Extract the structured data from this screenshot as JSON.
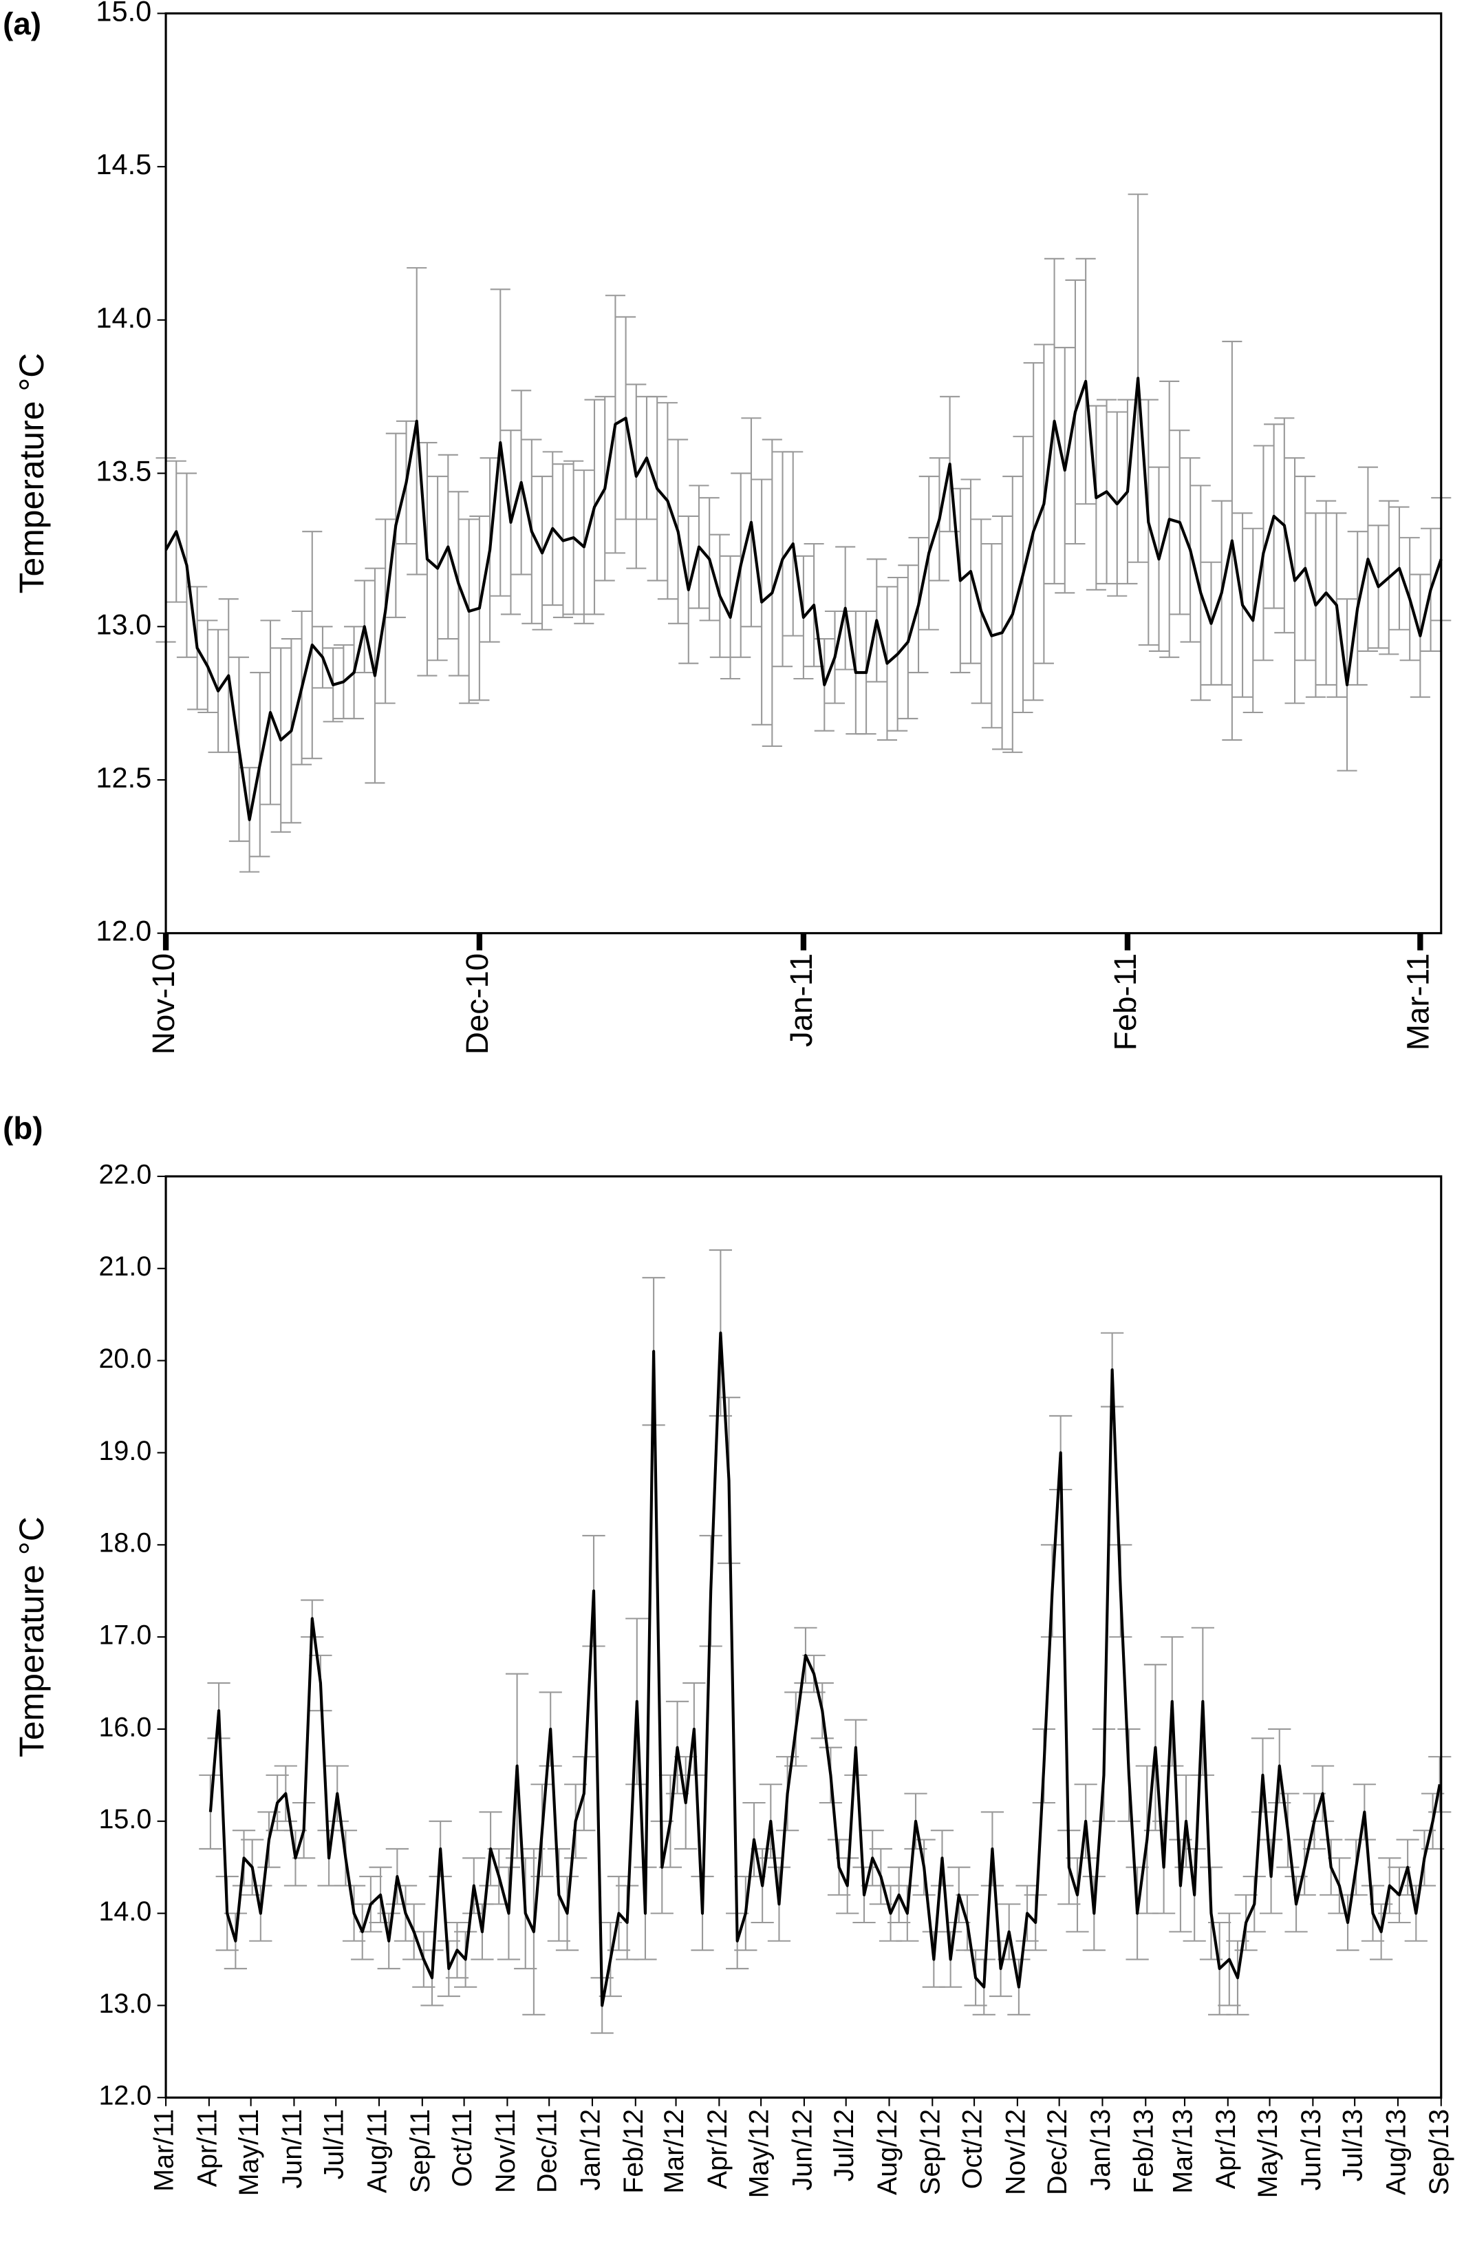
{
  "chart_data": [
    {
      "type": "line",
      "panel": "(a)",
      "y_label": "Temperature °C",
      "line_color": "#000000",
      "error_color": "#999999",
      "xlim": [
        0,
        122
      ],
      "xticks": [
        {
          "value": 0,
          "label": "Nov-10"
        },
        {
          "value": 30,
          "label": "Dec-10"
        },
        {
          "value": 61,
          "label": "Jan-11"
        },
        {
          "value": 92,
          "label": "Feb-11"
        },
        {
          "value": 120,
          "label": "Mar-11"
        }
      ],
      "ylim": [
        12,
        15
      ],
      "yticks": [
        {
          "value": 12,
          "label": "12.0"
        },
        12.5,
        {
          "value": 13,
          "label": "13.0"
        },
        13.5,
        {
          "value": 14,
          "label": "14.0"
        },
        14.5,
        {
          "value": 15,
          "label": "15.0"
        }
      ],
      "x": [
        0,
        1,
        2,
        3,
        4,
        5,
        6,
        7,
        8,
        9,
        10,
        11,
        12,
        13,
        14,
        15,
        16,
        17,
        18,
        19,
        20,
        21,
        22,
        23,
        24,
        25,
        26,
        27,
        28,
        29,
        30,
        31,
        32,
        33,
        34,
        35,
        36,
        37,
        38,
        39,
        40,
        41,
        42,
        43,
        44,
        45,
        46,
        47,
        48,
        49,
        50,
        51,
        52,
        53,
        54,
        55,
        56,
        57,
        58,
        59,
        60,
        61,
        62,
        63,
        64,
        65,
        66,
        67,
        68,
        69,
        70,
        71,
        72,
        73,
        74,
        75,
        76,
        77,
        78,
        79,
        80,
        81,
        82,
        83,
        84,
        85,
        86,
        87,
        88,
        89,
        90,
        91,
        92,
        93,
        94,
        95,
        96,
        97,
        98,
        99,
        100,
        101,
        102,
        103,
        104,
        105,
        106,
        107,
        108,
        109,
        110,
        111,
        112,
        113,
        114,
        115,
        116,
        117,
        118,
        119,
        120,
        121,
        122
      ],
      "values": [
        13.25,
        13.31,
        13.2,
        12.93,
        12.87,
        12.79,
        12.84,
        12.6,
        12.37,
        12.55,
        12.72,
        12.63,
        12.66,
        12.8,
        12.94,
        12.9,
        12.81,
        12.82,
        12.85,
        13.0,
        12.84,
        13.05,
        13.33,
        13.47,
        13.67,
        13.22,
        13.19,
        13.26,
        13.14,
        13.05,
        13.06,
        13.25,
        13.6,
        13.34,
        13.47,
        13.31,
        13.24,
        13.32,
        13.28,
        13.29,
        13.26,
        13.39,
        13.45,
        13.66,
        13.68,
        13.49,
        13.55,
        13.45,
        13.41,
        13.31,
        13.12,
        13.26,
        13.22,
        13.1,
        13.03,
        13.2,
        13.34,
        13.08,
        13.11,
        13.22,
        13.27,
        13.03,
        13.07,
        12.81,
        12.9,
        13.06,
        12.85,
        12.85,
        13.02,
        12.88,
        12.91,
        12.95,
        13.07,
        13.24,
        13.35,
        13.53,
        13.15,
        13.18,
        13.05,
        12.97,
        12.98,
        13.04,
        13.17,
        13.31,
        13.4,
        13.67,
        13.51,
        13.7,
        13.8,
        13.42,
        13.44,
        13.4,
        13.44,
        13.81,
        13.34,
        13.22,
        13.35,
        13.34,
        13.25,
        13.11,
        13.01,
        13.11,
        13.28,
        13.07,
        13.02,
        13.24,
        13.36,
        13.33,
        13.15,
        13.19,
        13.07,
        13.11,
        13.07,
        12.81,
        13.06,
        13.22,
        13.13,
        13.16,
        13.19,
        13.09,
        12.97,
        13.12,
        13.22
      ],
      "errors": [
        0.3,
        0.23,
        0.3,
        0.2,
        0.15,
        0.2,
        0.25,
        0.3,
        0.17,
        0.3,
        0.3,
        0.3,
        0.3,
        0.25,
        0.37,
        0.1,
        0.12,
        0.12,
        0.15,
        0.15,
        0.35,
        0.3,
        0.3,
        0.2,
        0.5,
        0.38,
        0.3,
        0.3,
        0.3,
        0.3,
        0.3,
        0.3,
        0.5,
        0.3,
        0.3,
        0.3,
        0.25,
        0.25,
        0.25,
        0.25,
        0.25,
        0.35,
        0.3,
        0.42,
        0.33,
        0.3,
        0.2,
        0.3,
        0.32,
        0.3,
        0.24,
        0.2,
        0.2,
        0.2,
        0.2,
        0.3,
        0.34,
        0.4,
        0.5,
        0.35,
        0.3,
        0.2,
        0.2,
        0.15,
        0.15,
        0.2,
        0.2,
        0.2,
        0.2,
        0.25,
        0.25,
        0.25,
        0.22,
        0.25,
        0.2,
        0.22,
        0.3,
        0.3,
        0.3,
        0.3,
        0.38,
        0.45,
        0.45,
        0.55,
        0.52,
        0.53,
        0.4,
        0.43,
        0.4,
        0.3,
        0.3,
        0.3,
        0.3,
        0.6,
        0.4,
        0.3,
        0.45,
        0.3,
        0.3,
        0.35,
        0.2,
        0.3,
        0.65,
        0.3,
        0.3,
        0.35,
        0.3,
        0.35,
        0.4,
        0.3,
        0.3,
        0.3,
        0.3,
        0.28,
        0.25,
        0.3,
        0.2,
        0.25,
        0.2,
        0.2,
        0.2,
        0.2,
        0.2
      ]
    },
    {
      "type": "line",
      "panel": "(b)",
      "y_label": "Temperature °C",
      "line_color": "#000000",
      "error_color": "#999999",
      "xlim": [
        0,
        915
      ],
      "xticks": [
        {
          "value": 0,
          "label": "Mar/11"
        },
        {
          "value": 31,
          "label": "Apr/11"
        },
        {
          "value": 61,
          "label": "May/11"
        },
        {
          "value": 92,
          "label": "Jun/11"
        },
        {
          "value": 122,
          "label": "Jul/11"
        },
        {
          "value": 153,
          "label": "Aug/11"
        },
        {
          "value": 184,
          "label": "Sep/11"
        },
        {
          "value": 214,
          "label": "Oct/11"
        },
        {
          "value": 245,
          "label": "Nov/11"
        },
        {
          "value": 275,
          "label": "Dec/11"
        },
        {
          "value": 306,
          "label": "Jan/12"
        },
        {
          "value": 337,
          "label": "Feb/12"
        },
        {
          "value": 366,
          "label": "Mar/12"
        },
        {
          "value": 397,
          "label": "Apr/12"
        },
        {
          "value": 427,
          "label": "May/12"
        },
        {
          "value": 458,
          "label": "Jun/12"
        },
        {
          "value": 488,
          "label": "Jul/12"
        },
        {
          "value": 519,
          "label": "Aug/12"
        },
        {
          "value": 550,
          "label": "Sep/12"
        },
        {
          "value": 580,
          "label": "Oct/12"
        },
        {
          "value": 611,
          "label": "Nov/12"
        },
        {
          "value": 641,
          "label": "Dec/12"
        },
        {
          "value": 672,
          "label": "Jan/13"
        },
        {
          "value": 703,
          "label": "Feb/13"
        },
        {
          "value": 731,
          "label": "Mar/13"
        },
        {
          "value": 762,
          "label": "Apr/13"
        },
        {
          "value": 792,
          "label": "May/13"
        },
        {
          "value": 823,
          "label": "Jun/13"
        },
        {
          "value": 853,
          "label": "Jul/13"
        },
        {
          "value": 884,
          "label": "Aug/13"
        },
        {
          "value": 915,
          "label": "Sep/13"
        }
      ],
      "ylim": [
        12,
        22
      ],
      "yticks": [
        {
          "value": 12,
          "label": "12.0"
        },
        {
          "value": 13,
          "label": "13.0"
        },
        {
          "value": 14,
          "label": "14.0"
        },
        {
          "value": 15,
          "label": "15.0"
        },
        {
          "value": 16,
          "label": "16.0"
        },
        {
          "value": 17,
          "label": "17.0"
        },
        {
          "value": 18,
          "label": "18.0"
        },
        {
          "value": 19,
          "label": "19.0"
        },
        {
          "value": 20,
          "label": "20.0"
        },
        {
          "value": 21,
          "label": "21.0"
        },
        {
          "value": 22,
          "label": "22.0"
        }
      ],
      "x": [
        32,
        38,
        44,
        50,
        56,
        62,
        68,
        74,
        80,
        86,
        93,
        99,
        105,
        111,
        117,
        123,
        129,
        135,
        141,
        147,
        154,
        160,
        166,
        172,
        178,
        185,
        191,
        197,
        203,
        209,
        215,
        221,
        227,
        233,
        239,
        246,
        252,
        258,
        264,
        270,
        276,
        282,
        288,
        294,
        300,
        307,
        313,
        319,
        325,
        331,
        338,
        344,
        350,
        356,
        362,
        367,
        373,
        379,
        385,
        391,
        398,
        404,
        410,
        416,
        422,
        428,
        434,
        440,
        446,
        452,
        459,
        465,
        471,
        477,
        483,
        489,
        495,
        501,
        507,
        513,
        520,
        526,
        532,
        538,
        544,
        551,
        557,
        563,
        569,
        575,
        581,
        587,
        593,
        599,
        605,
        612,
        618,
        624,
        630,
        636,
        642,
        648,
        654,
        660,
        666,
        673,
        679,
        685,
        691,
        697,
        704,
        710,
        716,
        722,
        728,
        732,
        738,
        744,
        750,
        756,
        763,
        769,
        775,
        781,
        787,
        793,
        799,
        805,
        811,
        817,
        824,
        830,
        836,
        842,
        848,
        854,
        860,
        866,
        872,
        878,
        885,
        891,
        897,
        903,
        909,
        914
      ],
      "values": [
        15.1,
        16.2,
        14.0,
        13.7,
        14.6,
        14.5,
        14.0,
        14.8,
        15.2,
        15.3,
        14.6,
        14.9,
        17.2,
        16.5,
        14.6,
        15.3,
        14.6,
        14.0,
        13.8,
        14.1,
        14.2,
        13.7,
        14.4,
        14.0,
        13.8,
        13.5,
        13.3,
        14.7,
        13.4,
        13.6,
        13.5,
        14.3,
        13.8,
        14.7,
        14.4,
        14.0,
        15.6,
        14.0,
        13.8,
        14.9,
        16.0,
        14.2,
        14.0,
        15.0,
        15.3,
        17.5,
        13.0,
        13.5,
        14.0,
        13.9,
        16.3,
        14.0,
        20.1,
        14.5,
        15.0,
        15.8,
        15.2,
        16.0,
        14.0,
        17.5,
        20.3,
        18.7,
        13.7,
        14.0,
        14.8,
        14.3,
        15.0,
        14.1,
        15.3,
        16.0,
        16.8,
        16.6,
        16.2,
        15.5,
        14.5,
        14.3,
        15.8,
        14.2,
        14.6,
        14.4,
        14.0,
        14.2,
        14.0,
        15.0,
        14.5,
        13.5,
        14.6,
        13.5,
        14.2,
        13.9,
        13.3,
        13.2,
        14.7,
        13.4,
        13.8,
        13.2,
        14.0,
        13.9,
        15.6,
        17.5,
        19.0,
        14.5,
        14.2,
        15.0,
        14.0,
        15.5,
        19.9,
        17.5,
        15.5,
        14.0,
        14.8,
        15.8,
        14.5,
        16.3,
        14.3,
        15.0,
        14.2,
        16.3,
        14.0,
        13.4,
        13.5,
        13.3,
        13.9,
        14.1,
        15.5,
        14.4,
        15.6,
        14.9,
        14.1,
        14.5,
        15.0,
        15.3,
        14.5,
        14.3,
        13.9,
        14.5,
        15.1,
        14.0,
        13.8,
        14.3,
        14.2,
        14.5,
        14.0,
        14.6,
        15.0,
        15.4
      ],
      "errors": [
        0.4,
        0.3,
        0.4,
        0.3,
        0.3,
        0.3,
        0.3,
        0.3,
        0.3,
        0.3,
        0.3,
        0.3,
        0.2,
        0.3,
        0.3,
        0.3,
        0.3,
        0.3,
        0.3,
        0.3,
        0.3,
        0.3,
        0.3,
        0.3,
        0.3,
        0.3,
        0.3,
        0.3,
        0.3,
        0.3,
        0.3,
        0.3,
        0.3,
        0.4,
        0.3,
        0.5,
        1.0,
        0.6,
        0.9,
        0.5,
        0.4,
        0.5,
        0.4,
        0.4,
        0.4,
        0.6,
        0.3,
        0.4,
        0.4,
        0.4,
        0.9,
        0.5,
        0.8,
        0.5,
        0.5,
        0.5,
        0.5,
        0.5,
        0.4,
        0.6,
        0.9,
        0.9,
        0.3,
        0.4,
        0.4,
        0.4,
        0.4,
        0.4,
        0.4,
        0.4,
        0.3,
        0.2,
        0.3,
        0.3,
        0.3,
        0.3,
        0.3,
        0.3,
        0.3,
        0.3,
        0.3,
        0.3,
        0.3,
        0.3,
        0.3,
        0.3,
        0.3,
        0.3,
        0.3,
        0.3,
        0.3,
        0.3,
        0.4,
        0.3,
        0.3,
        0.3,
        0.3,
        0.3,
        0.4,
        0.5,
        0.4,
        0.4,
        0.4,
        0.4,
        0.4,
        0.5,
        0.4,
        0.5,
        0.5,
        0.5,
        0.8,
        0.9,
        0.5,
        0.7,
        0.5,
        0.5,
        0.5,
        0.8,
        0.5,
        0.5,
        0.5,
        0.4,
        0.3,
        0.3,
        0.4,
        0.4,
        0.4,
        0.4,
        0.3,
        0.3,
        0.3,
        0.3,
        0.3,
        0.3,
        0.3,
        0.3,
        0.3,
        0.3,
        0.3,
        0.3,
        0.3,
        0.3,
        0.3,
        0.3,
        0.3,
        0.3
      ]
    }
  ]
}
